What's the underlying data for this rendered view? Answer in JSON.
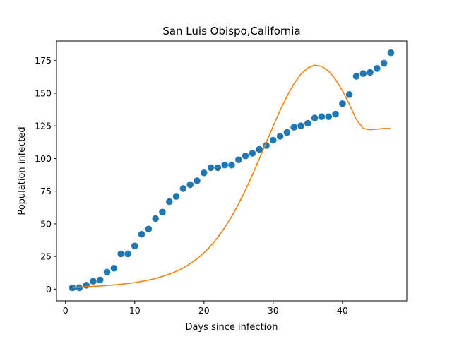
{
  "chart_data": {
    "type": "scatter",
    "title": "San Luis Obispo,California",
    "xlabel": "Days since infection",
    "ylabel": "Population infected",
    "xlim": [
      -1.3,
      49.3
    ],
    "ylim": [
      -9,
      190
    ],
    "xticks": [
      0,
      10,
      20,
      30,
      40
    ],
    "yticks": [
      0,
      25,
      50,
      75,
      100,
      125,
      150,
      175
    ],
    "grid": false,
    "legend": "none",
    "series": [
      {
        "kind": "scatter",
        "color": "#1f77b4",
        "x": [
          1,
          2,
          3,
          4,
          5,
          6,
          7,
          8,
          9,
          10,
          11,
          12,
          13,
          14,
          15,
          16,
          17,
          18,
          19,
          20,
          21,
          22,
          23,
          24,
          25,
          26,
          27,
          28,
          29,
          30,
          31,
          32,
          33,
          34,
          35,
          36,
          37,
          38,
          39,
          40,
          41,
          42,
          43,
          44,
          45,
          46,
          47
        ],
        "y": [
          1,
          1,
          3,
          6,
          7,
          13,
          16,
          27,
          27,
          33,
          42,
          46,
          54,
          59,
          67,
          71,
          77,
          80,
          83,
          89,
          93,
          93,
          95,
          95,
          99,
          102,
          104,
          107,
          110,
          114,
          117,
          120,
          124,
          125,
          127,
          131,
          132,
          132,
          134,
          142,
          149,
          163,
          165,
          166,
          169,
          173,
          181
        ]
      },
      {
        "kind": "line",
        "color": "#ff7f0e",
        "x": [
          1,
          2,
          3,
          4,
          5,
          6,
          7,
          8,
          9,
          10,
          11,
          12,
          13,
          14,
          15,
          16,
          17,
          18,
          19,
          20,
          21,
          22,
          23,
          24,
          25,
          26,
          27,
          28,
          29,
          30,
          31,
          32,
          33,
          34,
          35,
          36,
          37,
          38,
          39,
          40,
          41,
          42,
          43,
          44,
          45,
          46,
          47
        ],
        "y": [
          1.3,
          1.5,
          1.8,
          2.1,
          2.4,
          2.8,
          3.2,
          3.7,
          4.3,
          5.0,
          5.9,
          6.9,
          8.2,
          9.7,
          11.5,
          13.6,
          16.2,
          19.4,
          23.2,
          27.8,
          33.2,
          39.6,
          47.1,
          55.6,
          65.2,
          75.9,
          87.5,
          99.7,
          112.3,
          124.8,
          136.8,
          147.8,
          157.3,
          164.6,
          169.4,
          171.5,
          170.6,
          167.0,
          160.7,
          152.0,
          141.5,
          130.0,
          123.0,
          122.0,
          122.5,
          123.0,
          123.0
        ]
      }
    ]
  }
}
